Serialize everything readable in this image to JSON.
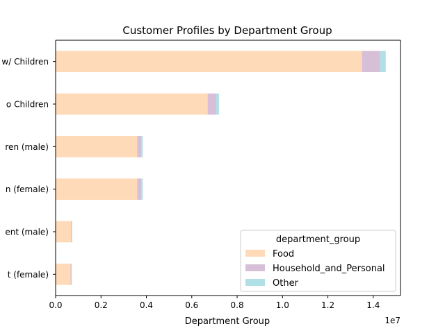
{
  "chart_data": {
    "type": "bar",
    "orientation": "horizontal",
    "stacked": true,
    "title": "Customer Profiles by Department Group",
    "xlabel": "Department Group",
    "ylabel": "",
    "x_multiplier": "1e7",
    "xlim": [
      0,
      15200000
    ],
    "x_ticks": [
      0,
      2000000,
      4000000,
      6000000,
      8000000,
      10000000,
      12000000,
      14000000
    ],
    "x_tick_labels": [
      "0.0",
      "0.2",
      "0.4",
      "0.6",
      "0.8",
      "1.0",
      "1.2",
      "1.4"
    ],
    "categories": [
      "w/ Children",
      "o Children",
      "ren (male)",
      "n (female)",
      "ent (male)",
      "t (female)"
    ],
    "series": [
      {
        "name": "Food",
        "color": "#ffdab9",
        "values": [
          13500000,
          6700000,
          3600000,
          3600000,
          680000,
          660000
        ]
      },
      {
        "name": "Household_and_Personal",
        "color": "#d8bfd8",
        "values": [
          800000,
          380000,
          180000,
          180000,
          35000,
          35000
        ]
      },
      {
        "name": "Other",
        "color": "#b0e0e6",
        "values": [
          250000,
          120000,
          60000,
          60000,
          20000,
          20000
        ]
      }
    ],
    "legend": {
      "title": "department_group",
      "placement": "lower-right"
    },
    "grid": false
  }
}
